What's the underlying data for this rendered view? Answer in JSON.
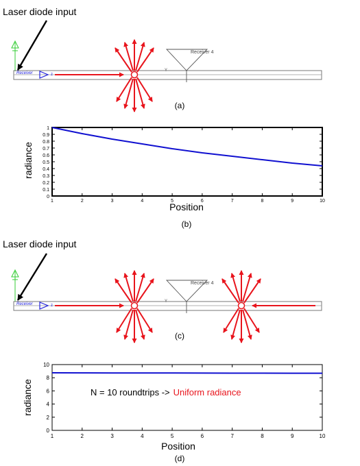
{
  "panel_a": {
    "laser_label": "Laser diode input",
    "receiver_label": "Receiver 4",
    "source_label": "Receiver",
    "y_label": "Y",
    "z_label": "z",
    "caption": "(a)"
  },
  "panel_c": {
    "laser_label": "Laser diode input",
    "receiver_label": "Receiver 4",
    "source_label": "Receiver",
    "y_label": "Y",
    "z_label": "z",
    "caption": "(c)"
  },
  "colors": {
    "red": "#e8141c",
    "blue": "#2222dd",
    "curve": "#1010d0",
    "gray": "#777777",
    "green": "#33cc33"
  },
  "chart_data": [
    {
      "type": "line",
      "x": [
        1,
        2,
        3,
        4,
        5,
        6,
        7,
        8,
        9,
        10
      ],
      "series": [
        {
          "values": [
            1.0,
            0.91,
            0.83,
            0.76,
            0.69,
            0.63,
            0.58,
            0.53,
            0.48,
            0.44
          ]
        }
      ],
      "xlabel": "Position",
      "ylabel": "radiance",
      "xlim": [
        1,
        10
      ],
      "ylim": [
        0,
        1
      ],
      "xticks": [
        "1",
        "2",
        "3",
        "4",
        "5",
        "6",
        "7",
        "8",
        "9",
        "10"
      ],
      "yticks": [
        "0",
        "0.1",
        "0.2",
        "0.3",
        "0.4",
        "0.5",
        "0.6",
        "0.7",
        "0.8",
        "0.9",
        "1"
      ],
      "caption": "(b)",
      "grid": false
    },
    {
      "type": "line",
      "x": [
        1,
        2,
        3,
        4,
        5,
        6,
        7,
        8,
        9,
        10
      ],
      "series": [
        {
          "values": [
            8.75,
            8.74,
            8.73,
            8.72,
            8.72,
            8.71,
            8.7,
            8.7,
            8.69,
            8.68
          ]
        }
      ],
      "xlabel": "Position",
      "ylabel": "radiance",
      "xlim": [
        1,
        10
      ],
      "ylim": [
        0,
        10
      ],
      "xticks": [
        "1",
        "2",
        "3",
        "4",
        "5",
        "6",
        "7",
        "8",
        "9",
        "10"
      ],
      "yticks": [
        "0",
        "2",
        "4",
        "6",
        "8",
        "10"
      ],
      "annotation_black": "N = 10 roundtrips  ->",
      "annotation_red": "Uniform radiance",
      "caption": "(d)",
      "grid": false
    }
  ]
}
